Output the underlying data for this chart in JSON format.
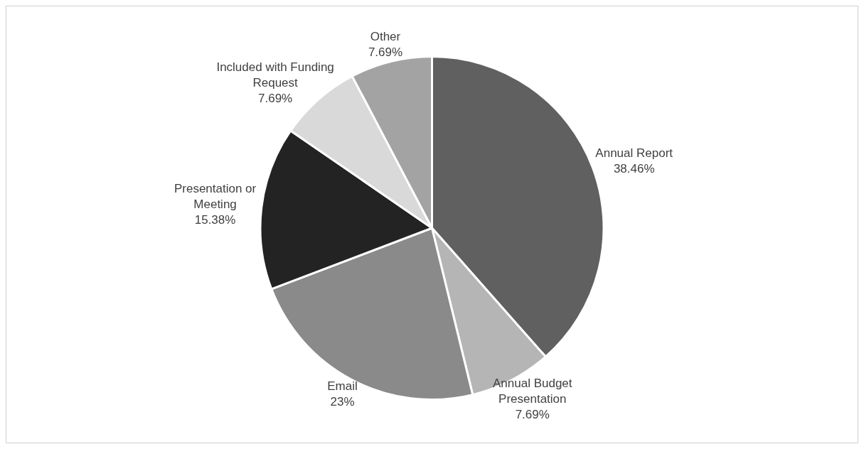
{
  "chart_data": {
    "type": "pie",
    "categories": [
      "Annual Report",
      "Annual Budget Presentation",
      "Email",
      "Presentation or Meeting",
      "Included with Funding Request",
      "Other"
    ],
    "values": [
      38.46,
      7.69,
      23,
      15.38,
      7.69,
      7.69
    ],
    "colors": [
      "#606060",
      "#b5b5b5",
      "#8a8a8a",
      "#232323",
      "#d9d9d9",
      "#a3a3a3"
    ],
    "value_labels": [
      "38.46%",
      "7.69%",
      "23%",
      "15.38%",
      "7.69%",
      "7.69%"
    ],
    "legend": false
  }
}
